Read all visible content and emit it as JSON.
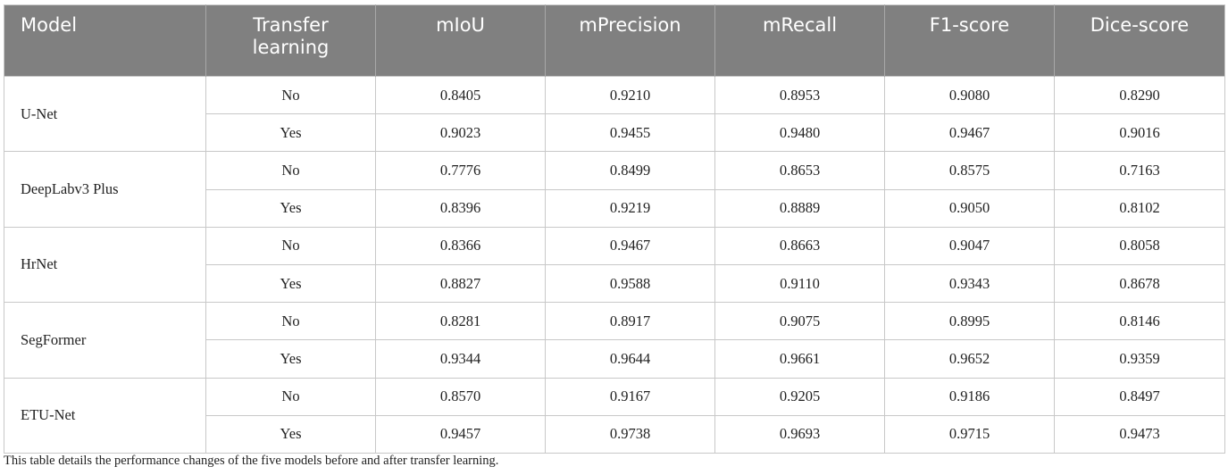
{
  "table": {
    "header": [
      "Model",
      "Transfer learning",
      "mIoU",
      "mPrecision",
      "mRecall",
      "F1-score",
      "Dice-score"
    ],
    "groups": [
      {
        "model": "U-Net",
        "rows": [
          [
            "No",
            "0.8405",
            "0.9210",
            "0.8953",
            "0.9080",
            "0.8290"
          ],
          [
            "Yes",
            "0.9023",
            "0.9455",
            "0.9480",
            "0.9467",
            "0.9016"
          ]
        ]
      },
      {
        "model": "DeepLabv3 Plus",
        "rows": [
          [
            "No",
            "0.7776",
            "0.8499",
            "0.8653",
            "0.8575",
            "0.7163"
          ],
          [
            "Yes",
            "0.8396",
            "0.9219",
            "0.8889",
            "0.9050",
            "0.8102"
          ]
        ]
      },
      {
        "model": "HrNet",
        "rows": [
          [
            "No",
            "0.8366",
            "0.9467",
            "0.8663",
            "0.9047",
            "0.8058"
          ],
          [
            "Yes",
            "0.8827",
            "0.9588",
            "0.9110",
            "0.9343",
            "0.8678"
          ]
        ]
      },
      {
        "model": "SegFormer",
        "rows": [
          [
            "No",
            "0.8281",
            "0.8917",
            "0.9075",
            "0.8995",
            "0.8146"
          ],
          [
            "Yes",
            "0.9344",
            "0.9644",
            "0.9661",
            "0.9652",
            "0.9359"
          ]
        ]
      },
      {
        "model": "ETU-Net",
        "rows": [
          [
            "No",
            "0.8570",
            "0.9167",
            "0.9205",
            "0.9186",
            "0.8497"
          ],
          [
            "Yes",
            "0.9457",
            "0.9738",
            "0.9693",
            "0.9715",
            "0.9473"
          ]
        ]
      }
    ],
    "caption": "This table details the performance changes of the five models before and after transfer learning."
  }
}
